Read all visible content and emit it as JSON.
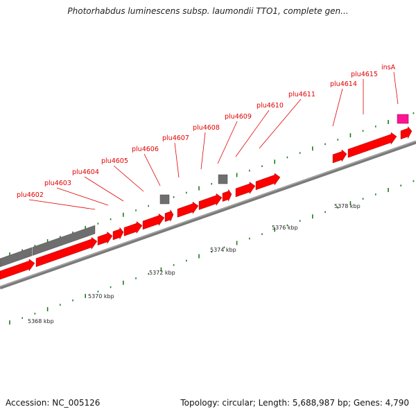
{
  "header": {
    "title": "Photorhabdus luminescens subsp. laumondii TTO1, complete gen..."
  },
  "footer": {
    "accession": "Accession: NC_005126",
    "summary": "Topology: circular; Length: 5,688,987 bp; Genes: 4,790"
  },
  "colors": {
    "gene_forward": "#ff0000",
    "gene_other": "#6e6e6e",
    "gene_highlight": "#ff1493",
    "tick_major": "#1e7a1e",
    "label_red": "#e00000",
    "backbone": "#808080"
  },
  "gene_labels": [
    "plu4602",
    "plu4603",
    "plu4604",
    "plu4605",
    "plu4606",
    "plu4607",
    "plu4608",
    "plu4609",
    "plu4610",
    "plu4611",
    "plu4614",
    "plu4615",
    "insA"
  ],
  "tick_labels": [
    "5368 kbp",
    "5370 kbp",
    "5372 kbp",
    "5374 kbp",
    "5376 kbp",
    "5378 kbp"
  ]
}
